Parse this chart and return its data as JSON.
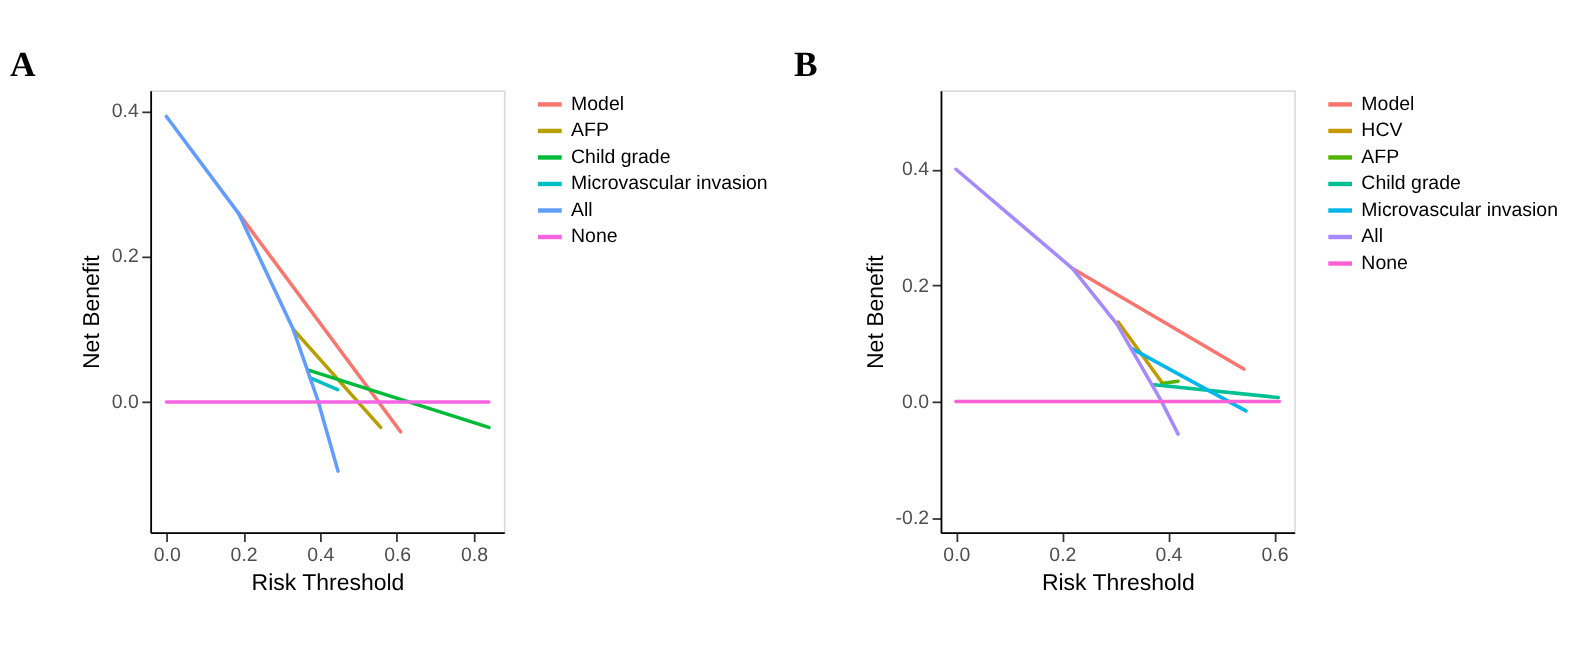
{
  "chart_data": [
    {
      "type": "line",
      "title": "A",
      "xlabel": "Risk Threshold",
      "ylabel": "Net Benefit",
      "legend": "right",
      "xlim": [
        -0.042,
        0.879
      ],
      "ylim": [
        -0.179,
        0.428
      ],
      "xticks": [
        {
          "value": 0,
          "label": "0.0"
        },
        0.2,
        0.4,
        0.6,
        0.8
      ],
      "yticks": [
        {
          "value": 0,
          "label": "0.0"
        },
        0.2,
        0.4
      ],
      "series": [
        {
          "name": "Model",
          "color": "#F8766D",
          "x": [
            0.188,
            0.61
          ],
          "values": [
            0.259,
            -0.041
          ]
        },
        {
          "name": "AFP",
          "color": "#B79F00",
          "x": [
            0.33,
            0.558
          ],
          "values": [
            0.1,
            -0.035
          ]
        },
        {
          "name": "Child grade",
          "color": "#00BA38",
          "x": [
            0.368,
            0.84
          ],
          "values": [
            0.044,
            -0.035
          ]
        },
        {
          "name": "Microvascular invasion",
          "color": "#00BFC4",
          "x": [
            0.375,
            0.446
          ],
          "values": [
            0.033,
            0.017
          ]
        },
        {
          "name": "All",
          "color": "#619CFF",
          "x": [
            0,
            0.188,
            0.33,
            0.394,
            0.447
          ],
          "values": [
            0.392,
            0.259,
            0.1,
            0.003,
            -0.095
          ]
        },
        {
          "name": "None",
          "color": "#F564E3",
          "x": [
            0,
            0.84
          ],
          "values": [
            0,
            0
          ]
        }
      ]
    },
    {
      "type": "line",
      "title": "B",
      "xlabel": "Risk Threshold",
      "ylabel": "Net Benefit",
      "legend": "right",
      "xlim": [
        -0.029,
        0.638
      ],
      "ylim": [
        -0.225,
        0.536
      ],
      "xticks": [
        {
          "value": 0,
          "label": "0.0"
        },
        0.2,
        0.4,
        0.6
      ],
      "yticks": [
        -0.2,
        {
          "value": 0,
          "label": "0.0"
        },
        0.2,
        0.4
      ],
      "series": [
        {
          "name": "Model",
          "color": "#F8766D",
          "x": [
            0.22,
            0.543
          ],
          "values": [
            0.229,
            0.056
          ]
        },
        {
          "name": "HCV",
          "color": "#C49A00",
          "x": [
            0.306,
            0.39
          ],
          "values": [
            0.137,
            0.031
          ]
        },
        {
          "name": "AFP",
          "color": "#53B400",
          "x": [
            0.388,
            0.419
          ],
          "values": [
            0.031,
            0.035
          ]
        },
        {
          "name": "Child grade",
          "color": "#00C094",
          "x": [
            0.374,
            0.608
          ],
          "values": [
            0.029,
            0.007
          ]
        },
        {
          "name": "Microvascular invasion",
          "color": "#00B6EB",
          "x": [
            0.33,
            0.547
          ],
          "values": [
            0.092,
            -0.016
          ]
        },
        {
          "name": "All",
          "color": "#A58AFF",
          "x": [
            0,
            0.22,
            0.304,
            0.388,
            0.419
          ],
          "values": [
            0.4,
            0.229,
            0.133,
            0.0,
            -0.056
          ]
        },
        {
          "name": "None",
          "color": "#FB61D7",
          "x": [
            0,
            0.61
          ],
          "values": [
            0,
            0
          ]
        }
      ]
    }
  ]
}
